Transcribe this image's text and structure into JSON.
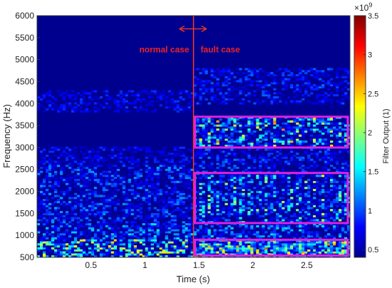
{
  "chart_data": {
    "type": "heatmap",
    "xlabel": "Time (s)",
    "ylabel": "Frequency (Hz)",
    "xlim": [
      0,
      2.9
    ],
    "ylim": [
      500,
      6000
    ],
    "x_ticks": [
      0.5,
      1,
      1.5,
      2,
      2.5
    ],
    "y_ticks": [
      500,
      1000,
      1500,
      2000,
      2500,
      3000,
      3500,
      4000,
      4500,
      5000,
      5500,
      6000
    ],
    "colorbar": {
      "label": "Filter Output (1)",
      "exponent_label": "×10",
      "exponent_power": "9",
      "range": [
        0.4,
        3.5
      ],
      "ticks": [
        0.5,
        1,
        1.5,
        2,
        2.5,
        3,
        3.5
      ],
      "colormap": "jet"
    },
    "separator_time": 1.45,
    "annotations": {
      "normal_label": "normal case",
      "fault_label": "fault case",
      "arrow_span": [
        1.32,
        1.57
      ],
      "arrow_freq": 5700
    },
    "highlight_boxes": [
      {
        "t0": 1.45,
        "t1": 2.88,
        "f0": 3000,
        "f1": 3700
      },
      {
        "t0": 1.45,
        "t1": 2.88,
        "f0": 1280,
        "f1": 2420
      },
      {
        "t0": 1.45,
        "t1": 2.88,
        "f0": 540,
        "f1": 900
      }
    ],
    "energy_bands": [
      {
        "f0": 500,
        "f1": 900,
        "level": 1.7,
        "region": "both"
      },
      {
        "f0": 900,
        "f1": 1300,
        "level": 0.9,
        "region": "both"
      },
      {
        "f0": 1300,
        "f1": 2400,
        "level": 1.4,
        "region": "fault"
      },
      {
        "f0": 3000,
        "f1": 3700,
        "level": 1.8,
        "region": "fault"
      }
    ],
    "colors": {
      "separator": "#ff3a1a",
      "box": "#e020e0",
      "annotation": "#ee2222",
      "background": "#00008f"
    }
  }
}
